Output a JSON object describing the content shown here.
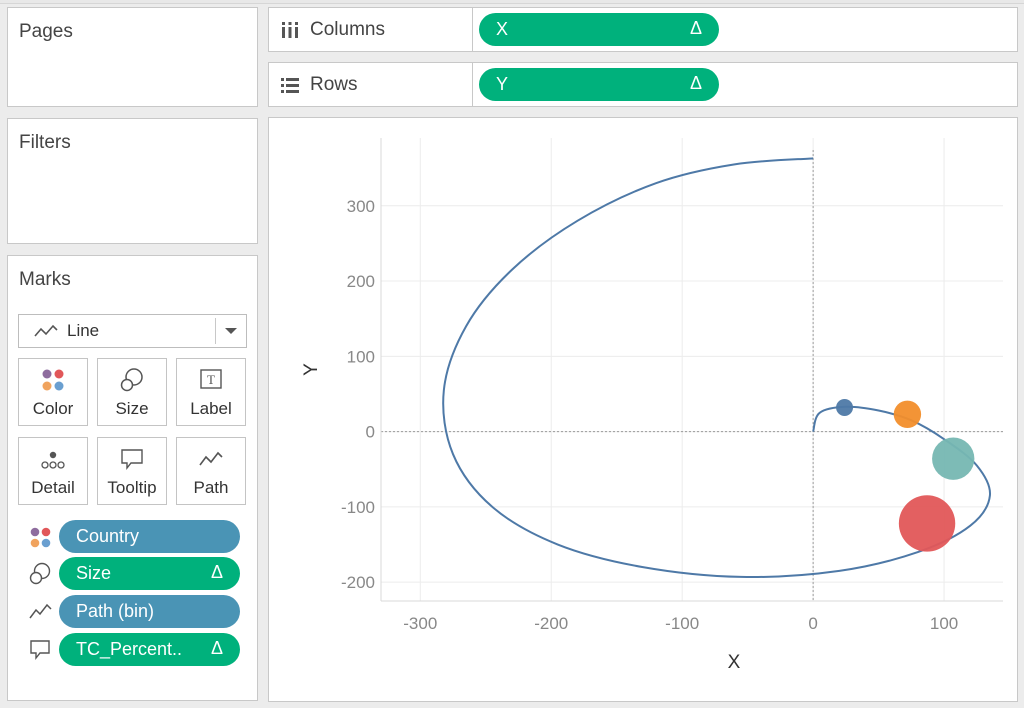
{
  "left_panel": {
    "pages_label": "Pages",
    "filters_label": "Filters",
    "marks_label": "Marks",
    "mark_type": "Line",
    "mark_buttons": [
      "Color",
      "Size",
      "Label",
      "Detail",
      "Tooltip",
      "Path"
    ],
    "fields": [
      {
        "label": "Country",
        "kind": "dimension",
        "delta": "",
        "icon": "color-icon"
      },
      {
        "label": "Size",
        "kind": "measure",
        "delta": "Δ",
        "icon": "size-icon"
      },
      {
        "label": "Path (bin)",
        "kind": "dimension",
        "delta": "",
        "icon": "path-icon"
      },
      {
        "label": "TC_Percent..",
        "kind": "measure",
        "delta": "Δ",
        "icon": "tooltip-icon"
      }
    ]
  },
  "shelves": {
    "columns_label": "Columns",
    "columns_pill": "X",
    "columns_delta": "Δ",
    "rows_label": "Rows",
    "rows_pill": "Y",
    "rows_delta": "Δ"
  },
  "colors": {
    "measure_pill": "#00b17c",
    "dimension_pill": "#4a94b5",
    "line": "#4e79a7"
  },
  "chart_data": {
    "type": "line",
    "xlabel": "X",
    "ylabel": "Y",
    "xlim": [
      -330,
      145
    ],
    "ylim": [
      -225,
      390
    ],
    "xticks": [
      -300,
      -200,
      -100,
      0,
      100
    ],
    "yticks": [
      -200,
      -100,
      0,
      100,
      200,
      300
    ],
    "x_tick_labels": [
      "-300",
      "-200",
      "-100",
      "0",
      "100"
    ],
    "y_tick_labels": [
      "-200",
      "-100",
      "0",
      "100",
      "200",
      "300"
    ],
    "grid": true,
    "spiral_line": {
      "color": "#4e79a7",
      "points": [
        [
          0,
          363
        ],
        [
          -60,
          355
        ],
        [
          -120,
          330
        ],
        [
          -180,
          280
        ],
        [
          -230,
          215
        ],
        [
          -265,
          140
        ],
        [
          -282,
          55
        ],
        [
          -275,
          -30
        ],
        [
          -245,
          -100
        ],
        [
          -195,
          -150
        ],
        [
          -130,
          -180
        ],
        [
          -55,
          -193
        ],
        [
          20,
          -185
        ],
        [
          80,
          -160
        ],
        [
          120,
          -125
        ],
        [
          135,
          -85
        ],
        [
          125,
          -45
        ],
        [
          100,
          -10
        ],
        [
          75,
          15
        ],
        [
          50,
          28
        ],
        [
          25,
          33
        ],
        [
          5,
          25
        ],
        [
          0,
          0
        ]
      ]
    },
    "circles": [
      {
        "x": 24,
        "y": 32,
        "size": 1,
        "color": "#4e79a7"
      },
      {
        "x": 72,
        "y": 23,
        "size": 2.6,
        "color": "#f28e2b"
      },
      {
        "x": 107,
        "y": -36,
        "size": 6.2,
        "color": "#76b7b2"
      },
      {
        "x": 87,
        "y": -122,
        "size": 11,
        "color": "#e15759"
      }
    ]
  }
}
